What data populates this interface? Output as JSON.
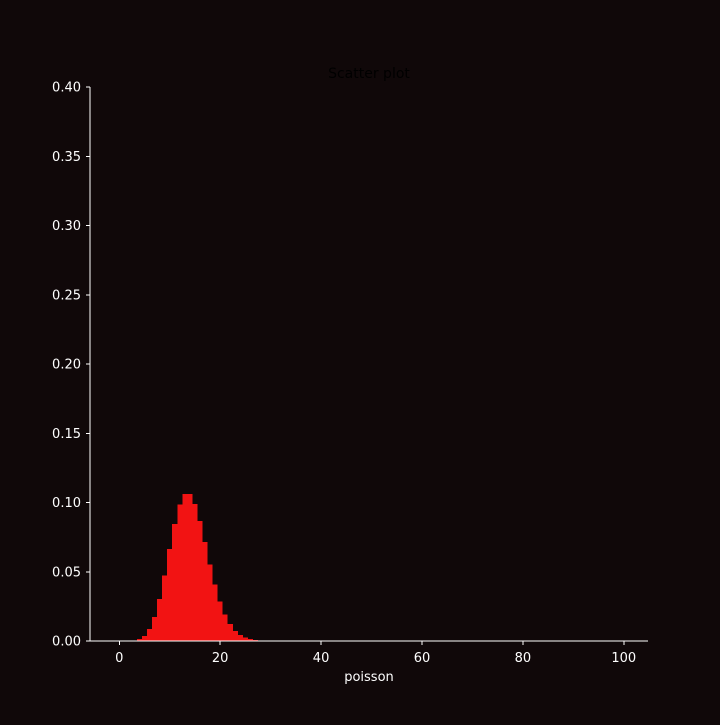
{
  "chart_data": {
    "type": "bar",
    "title": "Scatter plot",
    "xlabel": "poisson",
    "ylabel": "",
    "xlim": [
      -5.8,
      104.8
    ],
    "ylim": [
      0,
      0.4
    ],
    "xticks": [
      0,
      20,
      40,
      60,
      80,
      100
    ],
    "xtick_labels": [
      "0",
      "20",
      "40",
      "60",
      "80",
      "100"
    ],
    "yticks": [
      0,
      0.05,
      0.1,
      0.15,
      0.2,
      0.25,
      0.3,
      0.35,
      0.4
    ],
    "ytick_labels": [
      "0.00",
      "0.05",
      "0.10",
      "0.15",
      "0.20",
      "0.25",
      "0.30",
      "0.35",
      "0.40"
    ],
    "grid": false,
    "legend": false,
    "bar_width": 1,
    "x": [
      0,
      1,
      2,
      3,
      4,
      5,
      6,
      7,
      8,
      9,
      10,
      11,
      12,
      13,
      14,
      15,
      16,
      17,
      18,
      19,
      20,
      21,
      22,
      23,
      24,
      25,
      26,
      27,
      28,
      29,
      30
    ],
    "values": [
      0.0,
      0.0,
      0.0001,
      0.0004,
      0.0013,
      0.0037,
      0.0087,
      0.0174,
      0.0304,
      0.0473,
      0.0663,
      0.0844,
      0.0984,
      0.106,
      0.106,
      0.099,
      0.0866,
      0.0713,
      0.0554,
      0.0409,
      0.0286,
      0.0191,
      0.0121,
      0.0074,
      0.0043,
      0.0024,
      0.0013,
      0.0007,
      0.0003,
      0.0002,
      0.0001
    ],
    "colors": {
      "background": "#100809",
      "bar": "#f21313",
      "axis": "#ffffff",
      "text": "#ffffff",
      "title": "#000000"
    }
  }
}
